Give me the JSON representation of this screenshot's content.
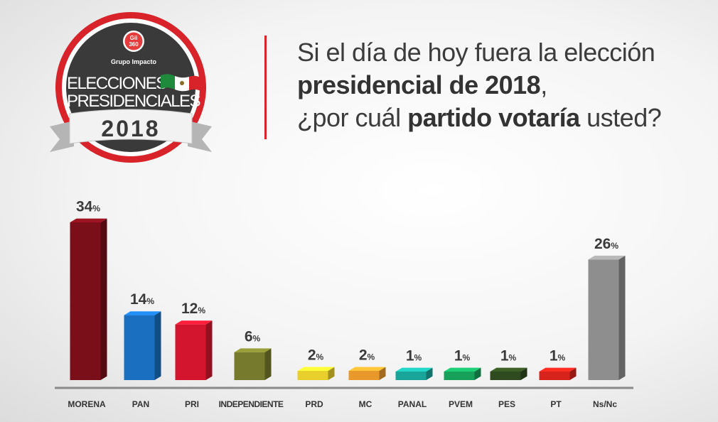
{
  "logo": {
    "badge_text": "GII 360",
    "badge_line1": "Gii",
    "badge_line2": "360",
    "brand": "Grupo Impacto",
    "line1": "ELECCIONES",
    "line2": "PRESIDENCIALES",
    "year": "2018"
  },
  "headline": {
    "line1": "Si el día de hoy fuera la elección",
    "line2_bold": "presidencial de 2018",
    "line2_tail": ",",
    "line3_pre": "¿por cuál ",
    "line3_bold": "partido votaría",
    "line3_post": " usted?"
  },
  "chart_data": {
    "type": "bar",
    "title": "Si el día de hoy fuera la elección presidencial de 2018, ¿por cuál partido votaría usted?",
    "xlabel": "",
    "ylabel": "",
    "unit": "%",
    "ylim": [
      0,
      40
    ],
    "grid": false,
    "categories": [
      "MORENA",
      "PAN",
      "PRI",
      "INDEPENDIENTE",
      "PRD",
      "MC",
      "PANAL",
      "PVEM",
      "PES",
      "PT",
      "Ns/Nc"
    ],
    "values": [
      34,
      14,
      12,
      6,
      2,
      2,
      1,
      1,
      1,
      1,
      26
    ],
    "colors": [
      "#7a0f1a",
      "#1a6fc0",
      "#d3162e",
      "#767a2c",
      "#e8cf2c",
      "#e9982c",
      "#1aa59a",
      "#17a05a",
      "#2f4a1e",
      "#d8231c",
      "#8e8e8e"
    ]
  }
}
